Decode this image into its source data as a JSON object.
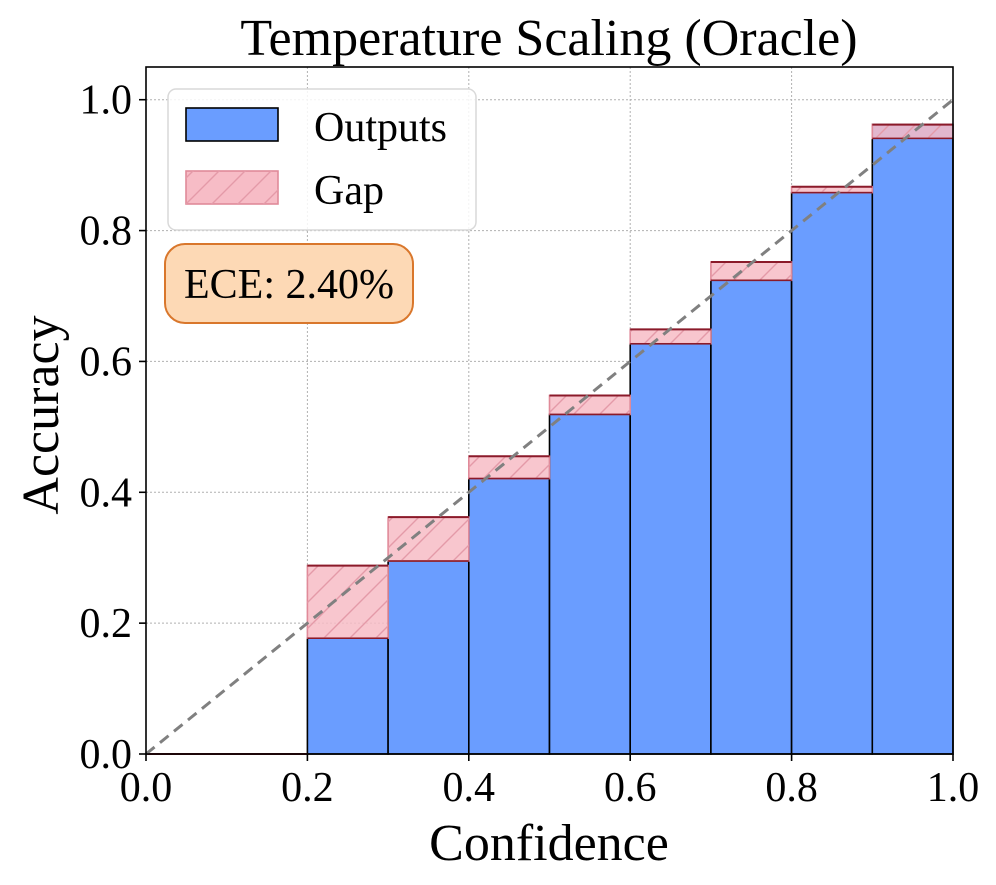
{
  "chart_data": {
    "type": "bar",
    "title": "Temperature Scaling (Oracle)",
    "xlabel": "Confidence",
    "ylabel": "Accuracy",
    "xlim": [
      0.0,
      1.0
    ],
    "ylim": [
      0.0,
      1.05
    ],
    "xticks": [
      "0.0",
      "0.2",
      "0.4",
      "0.6",
      "0.8",
      "1.0"
    ],
    "yticks": [
      "0.0",
      "0.2",
      "0.4",
      "0.6",
      "0.8",
      "1.0"
    ],
    "grid": true,
    "bins": [
      {
        "left": 0.2,
        "right": 0.3,
        "accuracy": 0.177,
        "confidence": 0.288
      },
      {
        "left": 0.3,
        "right": 0.4,
        "accuracy": 0.295,
        "confidence": 0.362
      },
      {
        "left": 0.4,
        "right": 0.5,
        "accuracy": 0.421,
        "confidence": 0.455
      },
      {
        "left": 0.5,
        "right": 0.6,
        "accuracy": 0.519,
        "confidence": 0.548
      },
      {
        "left": 0.6,
        "right": 0.7,
        "accuracy": 0.627,
        "confidence": 0.649
      },
      {
        "left": 0.7,
        "right": 0.8,
        "accuracy": 0.724,
        "confidence": 0.752
      },
      {
        "left": 0.8,
        "right": 0.9,
        "accuracy": 0.858,
        "confidence": 0.867
      },
      {
        "left": 0.9,
        "right": 1.0,
        "accuracy": 0.962,
        "confidence": 0.941
      }
    ],
    "legend": {
      "position": "top-left",
      "entries": [
        {
          "label": "Outputs",
          "color": "#6a9dff"
        },
        {
          "label": "Gap",
          "color": "#f7b6c0"
        }
      ]
    },
    "annotation": "ECE: 2.40%",
    "colors": {
      "outputs": "#6a9dff",
      "gap_fill": "#f7bcc6",
      "gap_edge": "#e08a99",
      "gap_top_edge": "#8b1a2a",
      "diagonal": "#808080",
      "annotation_fill": "#fdd9b5",
      "annotation_edge": "#d9772c"
    }
  }
}
